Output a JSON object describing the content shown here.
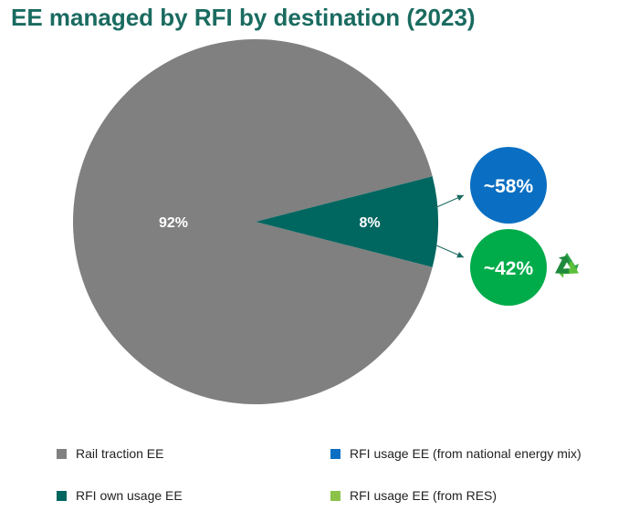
{
  "chart_data": {
    "type": "pie",
    "title": "EE managed by RFI by destination (2023)",
    "slices": [
      {
        "label": "Rail traction EE",
        "value": 92,
        "display": "92%",
        "color": "#808080"
      },
      {
        "label": "RFI own usage EE",
        "value": 8,
        "display": "8%",
        "color": "#006660"
      }
    ],
    "breakdown": {
      "parent": "RFI own usage EE",
      "items": [
        {
          "label": "RFI usage EE (from national energy mix)",
          "display": "~58%",
          "color": "#0a6fc2"
        },
        {
          "label": "RFI usage EE (from RES)",
          "display": "~42%",
          "color": "#00ac4a",
          "icon": "recycle-icon"
        }
      ]
    },
    "legend": {
      "placement": "bottom",
      "items": [
        {
          "label": "Rail traction EE",
          "color": "#808080"
        },
        {
          "label": "RFI usage EE (from national energy mix)",
          "color": "#0a6fc2"
        },
        {
          "label": "RFI own usage EE",
          "color": "#006660"
        },
        {
          "label": "RFI usage EE (from RES)",
          "color": "#8bc34a"
        }
      ]
    }
  }
}
